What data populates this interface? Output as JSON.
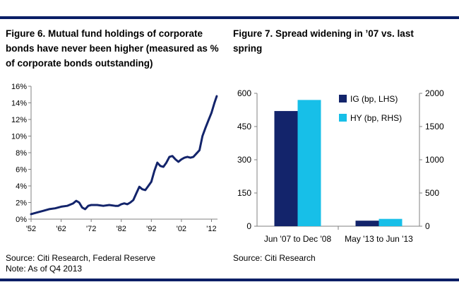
{
  "figures": [
    {
      "title": "Figure 6. Mutual fund holdings of corporate bonds have never been higher (measured as % of corporate bonds outstanding)",
      "source": "Source: Citi Research, Federal Reserve",
      "note": "Note: As of Q4 2013"
    },
    {
      "title": "Figure 7. Spread widening in ’07 vs. last spring",
      "source": "Source: Citi Research"
    }
  ],
  "colors": {
    "rule": "#0a1f66",
    "line": "#13246b",
    "ig": "#13246b",
    "hy": "#17bfe8"
  },
  "chart_data": [
    {
      "type": "line",
      "title": "",
      "xlabel": "",
      "ylabel": "",
      "xlim": [
        1952,
        2014
      ],
      "ylim": [
        0,
        16
      ],
      "xticks": [
        1952,
        1962,
        1972,
        1982,
        1992,
        2002,
        2012
      ],
      "xtick_labels": [
        "'52",
        "'62",
        "'72",
        "'82",
        "'92",
        "'02",
        "'12"
      ],
      "yticks": [
        0,
        2,
        4,
        6,
        8,
        10,
        12,
        14,
        16
      ],
      "ytick_labels": [
        "0%",
        "2%",
        "4%",
        "6%",
        "8%",
        "10%",
        "12%",
        "14%",
        "16%"
      ],
      "grid": false,
      "series": [
        {
          "name": "",
          "x": [
            1952,
            1954,
            1956,
            1958,
            1960,
            1962,
            1964,
            1966,
            1967,
            1968,
            1969,
            1970,
            1971,
            1972,
            1974,
            1976,
            1978,
            1980,
            1981,
            1982,
            1983,
            1984,
            1985,
            1986,
            1987,
            1988,
            1989,
            1990,
            1991,
            1992,
            1993,
            1994,
            1995,
            1996,
            1997,
            1998,
            1999,
            2000,
            2001,
            2002,
            2003,
            2004,
            2005,
            2006,
            2007,
            2008,
            2009,
            2010,
            2011,
            2012,
            2013,
            2013.75
          ],
          "y": [
            0.6,
            0.8,
            1.0,
            1.2,
            1.3,
            1.5,
            1.6,
            1.9,
            2.2,
            2.0,
            1.4,
            1.2,
            1.6,
            1.7,
            1.7,
            1.6,
            1.7,
            1.6,
            1.6,
            1.8,
            1.9,
            1.8,
            2.0,
            2.3,
            3.1,
            3.9,
            3.6,
            3.5,
            4.0,
            4.5,
            5.8,
            6.8,
            6.4,
            6.3,
            6.8,
            7.5,
            7.6,
            7.2,
            6.9,
            7.2,
            7.4,
            7.5,
            7.4,
            7.5,
            7.9,
            8.3,
            10.0,
            11.0,
            11.9,
            12.8,
            14.0,
            14.8
          ]
        }
      ]
    },
    {
      "type": "bar",
      "title": "",
      "categories": [
        "Jun '07 to Dec '08",
        "May '13 to Jun '13"
      ],
      "series": [
        {
          "name": "IG (bp, LHS)",
          "axis": "left",
          "values": [
            520,
            25
          ]
        },
        {
          "name": "HY (bp, RHS)",
          "axis": "right",
          "values": [
            1900,
            110
          ]
        }
      ],
      "ylim_left": [
        0,
        600
      ],
      "ylim_right": [
        0,
        2000
      ],
      "yticks_left": [
        0,
        150,
        300,
        450,
        600
      ],
      "yticks_right": [
        0,
        500,
        1000,
        1500,
        2000
      ],
      "xlabel": "",
      "ylabel": "",
      "legend": "top-right",
      "grid": false
    }
  ]
}
